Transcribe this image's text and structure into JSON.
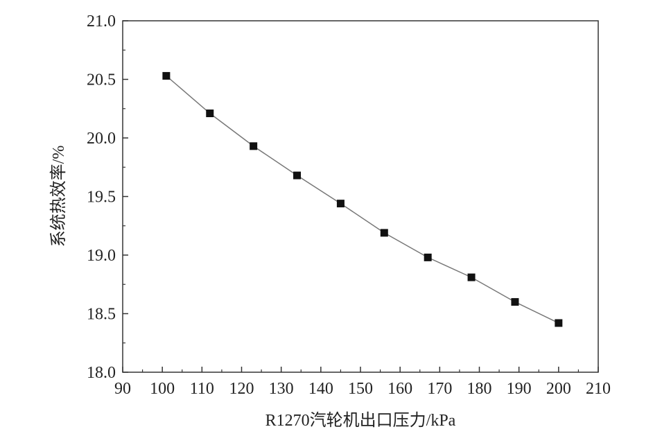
{
  "chart_data": {
    "type": "line",
    "title": "",
    "xlabel": "R1270汽轮机出口压力/kPa",
    "ylabel": "系统热效率/%",
    "xlim": [
      90,
      210
    ],
    "ylim": [
      18.0,
      21.0
    ],
    "x_ticks": [
      "90",
      "100",
      "110",
      "120",
      "130",
      "140",
      "150",
      "160",
      "170",
      "180",
      "190",
      "200",
      "210"
    ],
    "y_ticks": [
      "18.0",
      "18.5",
      "19.0",
      "19.5",
      "20.0",
      "20.5",
      "21.0"
    ],
    "grid": false,
    "legend": "none",
    "marker": "square",
    "colors": {
      "line": "#777777",
      "marker": "#111111",
      "axis": "#333333"
    },
    "series": [
      {
        "x": [
          101,
          112,
          123,
          134,
          145,
          156,
          167,
          178,
          189,
          200
        ],
        "values": [
          20.53,
          20.21,
          19.93,
          19.68,
          19.44,
          19.19,
          18.98,
          18.81,
          18.6,
          18.42
        ]
      }
    ]
  }
}
